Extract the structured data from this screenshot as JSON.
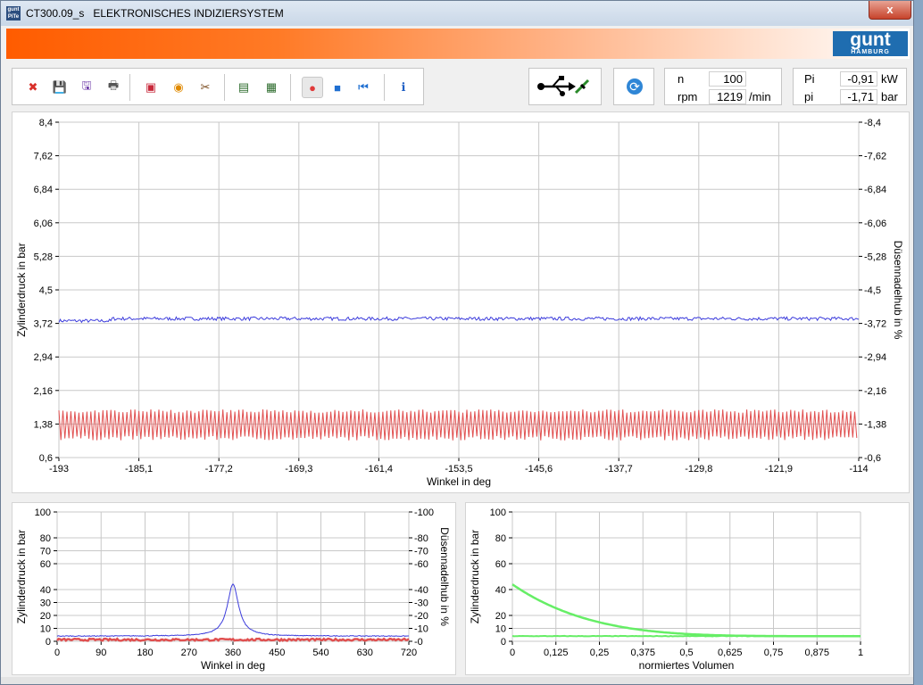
{
  "window": {
    "title": "CT300.09_s   ELEKTRONISCHES INDIZIERSYSTEM",
    "close_label": "x",
    "app_icon_text": "gunt PiTe"
  },
  "brand": {
    "logo": "gunt",
    "logo_sub": "HAMBURG"
  },
  "toolbar": {
    "buttons": [
      {
        "name": "close-file-icon",
        "glyph": "✖",
        "color": "#d9302a"
      },
      {
        "name": "save-icon",
        "glyph": "💾",
        "color": "#6d3aa8"
      },
      {
        "name": "save-as-icon",
        "glyph": "🖫",
        "color": "#6d3aa8"
      },
      {
        "name": "print-icon",
        "glyph": "🖶",
        "color": "#555555"
      },
      {
        "name": "stop-record-icon",
        "glyph": "▣",
        "color": "#c8283a"
      },
      {
        "name": "color-settings-icon",
        "glyph": "◉",
        "color": "#e08a00"
      },
      {
        "name": "tools-icon",
        "glyph": "✂",
        "color": "#7a4b1e"
      },
      {
        "name": "load-screen-icon",
        "glyph": "▤",
        "color": "#2c6b2c"
      },
      {
        "name": "add-screen-icon",
        "glyph": "▦",
        "color": "#2c6b2c"
      },
      {
        "name": "record-icon",
        "glyph": "●",
        "color": "#e03a3a"
      },
      {
        "name": "stop-icon",
        "glyph": "■",
        "color": "#1f6fd1"
      },
      {
        "name": "rewind-icon",
        "glyph": "⏮",
        "color": "#1f6fd1"
      },
      {
        "name": "info-icon",
        "glyph": "ℹ",
        "color": "#1f5fc4"
      }
    ]
  },
  "usb": {
    "label": "USB"
  },
  "refresh": {
    "label": "⟳"
  },
  "speed": {
    "n_label": "n",
    "n_value": "100",
    "rpm_label": "rpm",
    "rpm_value": "1219",
    "rpm_unit": "/min"
  },
  "power": {
    "Pi_label": "Pi",
    "Pi_value": "-0,91",
    "Pi_unit": "kW",
    "pi_label": "pi",
    "pi_value": "-1,71",
    "pi_unit": "bar"
  },
  "colors": {
    "pressure": "#3c3cdc",
    "needle": "#e05050",
    "volume": "#66ee66"
  },
  "chart_data": [
    {
      "id": "main",
      "type": "line",
      "xlabel": "Winkel in deg",
      "ylabel": "Zylinderdruck in bar",
      "y2label": "Düsennadelhub in %",
      "xlim": [
        -193,
        -114
      ],
      "ylim": [
        0.6,
        8.4
      ],
      "x_ticks": [
        "-193",
        "-185,1",
        "-177,2",
        "-169,3",
        "-161,4",
        "-153,5",
        "-145,6",
        "-137,7",
        "-129,8",
        "-121,9",
        "-114"
      ],
      "y_ticks": [
        "8,4",
        "7,62",
        "6,84",
        "6,06",
        "5,28",
        "4,5",
        "3,72",
        "2,94",
        "2,16",
        "1,38",
        "0,6"
      ],
      "y2_ticks": [
        "-8,4",
        "-7,62",
        "-6,84",
        "-6,06",
        "-5,28",
        "-4,5",
        "-3,72",
        "-2,94",
        "-2,16",
        "-1,38",
        "-0,6"
      ],
      "series": [
        {
          "color": "#3c3cdc",
          "mean": 3.83,
          "noise": 0.04,
          "kind": "flat"
        },
        {
          "color": "#e05050",
          "high": 1.72,
          "low": 1.0,
          "periods": 200,
          "kind": "oscillation"
        }
      ]
    },
    {
      "id": "angle",
      "type": "line",
      "xlabel": "Winkel in deg",
      "ylabel": "Zylinderdruck in bar",
      "y2label": "Düsennadelhub in %",
      "xlim": [
        0,
        720
      ],
      "ylim": [
        0,
        100
      ],
      "x_ticks": [
        "0",
        "90",
        "180",
        "270",
        "360",
        "450",
        "540",
        "630",
        "720"
      ],
      "y_tick_values": [
        0,
        10,
        20,
        30,
        40,
        60,
        70,
        80,
        100
      ],
      "y_ticks": [
        "0",
        "10",
        "20",
        "30",
        "40",
        "60",
        "70",
        "80",
        "100"
      ],
      "y2_ticks": [
        "-0",
        "-10",
        "-20",
        "-30",
        "-40",
        "-60",
        "-70",
        "-80",
        "-100"
      ],
      "series": [
        {
          "color": "#3c3cdc",
          "base": 4.0,
          "peak": 44,
          "peak_x": 360
        },
        {
          "color": "#e05050",
          "base": 1.2
        }
      ]
    },
    {
      "id": "volume",
      "type": "line",
      "xlabel": "normiertes Volumen",
      "ylabel": "Zylinderdruck in bar",
      "xlim": [
        0,
        1
      ],
      "ylim": [
        0,
        100
      ],
      "x_ticks": [
        "0",
        "0,125",
        "0,25",
        "0,375",
        "0,5",
        "0,625",
        "0,75",
        "0,875",
        "1"
      ],
      "y_tick_values": [
        0,
        10,
        20,
        40,
        60,
        80,
        100
      ],
      "y_ticks": [
        "0",
        "10",
        "20",
        "40",
        "60",
        "80",
        "100"
      ],
      "series": [
        {
          "color": "#66ee66",
          "p0": 44,
          "p_end": 4,
          "kind": "expansion"
        }
      ]
    }
  ]
}
